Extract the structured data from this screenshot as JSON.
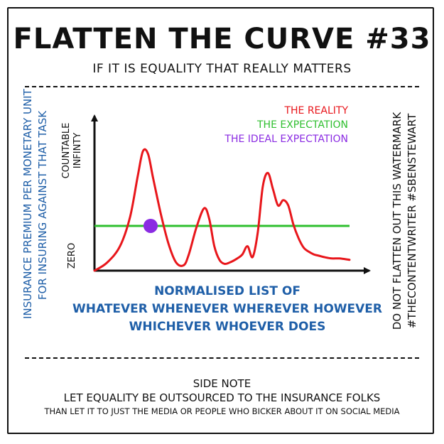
{
  "title": "FLATTEN THE CURVE #33",
  "subtitle": "IF IT IS EQUALITY THAT REALLY MATTERS",
  "watermark": {
    "line1": "DO NOT FLATTEN OUT THIS WATERMARK",
    "line2": "#THECONTENTWRITER #SBENSTEWART"
  },
  "side_note": {
    "heading": "SIDE NOTE",
    "line1": "LET EQUALITY BE OUTSOURCED TO THE INSURANCE FOLKS",
    "line2": "THAN LET IT TO JUST THE MEDIA OR PEOPLE WHO BICKER ABOUT IT ON SOCIAL MEDIA"
  },
  "colors": {
    "reality": "#e8161b",
    "expectation": "#2fbf2f",
    "ideal": "#8a2be2",
    "axis_label": "#1f5fa8"
  },
  "chart_data": {
    "type": "line",
    "ylabel": [
      "INSURANCE PREMIUM PER MONETARY UNIT",
      "FOR INSURING AGAINST THAT TASK"
    ],
    "xlabel": [
      "NORMALISED LIST OF",
      "WHATEVER WHENEVER WHEREVER HOWEVER",
      "WHICHEVER WHOEVER DOES"
    ],
    "y_ticks": {
      "top": [
        "COUNTABLE",
        "INFINTY"
      ],
      "bottom": "ZERO"
    },
    "xlim": [
      0,
      100
    ],
    "ylim": [
      0,
      100
    ],
    "series": [
      {
        "name": "THE REALITY",
        "color": "#e8161b",
        "x": [
          0,
          5,
          10,
          14,
          17,
          19,
          21,
          23,
          26,
          29,
          32,
          35,
          37,
          40,
          43,
          45,
          47,
          49,
          51,
          53,
          56,
          58,
          60,
          62,
          64,
          66,
          68,
          70,
          72,
          74,
          76,
          78,
          80,
          82,
          84,
          86,
          88,
          90,
          93,
          96,
          100
        ],
        "y": [
          0,
          6,
          18,
          40,
          70,
          88,
          86,
          68,
          42,
          20,
          6,
          4,
          12,
          32,
          46,
          38,
          18,
          8,
          5,
          6,
          9,
          12,
          18,
          10,
          28,
          62,
          72,
          60,
          48,
          52,
          48,
          34,
          24,
          17,
          14,
          12,
          11,
          10,
          9,
          9,
          8
        ]
      },
      {
        "name": "THE EXPECTATION",
        "color": "#2fbf2f",
        "x": [
          0,
          100
        ],
        "y": [
          33,
          33
        ]
      },
      {
        "name": "THE IDEAL  EXPECTATION",
        "color": "#8a2be2",
        "x": [
          22
        ],
        "y": [
          33
        ]
      }
    ],
    "legend": "top-right",
    "grid": false
  }
}
